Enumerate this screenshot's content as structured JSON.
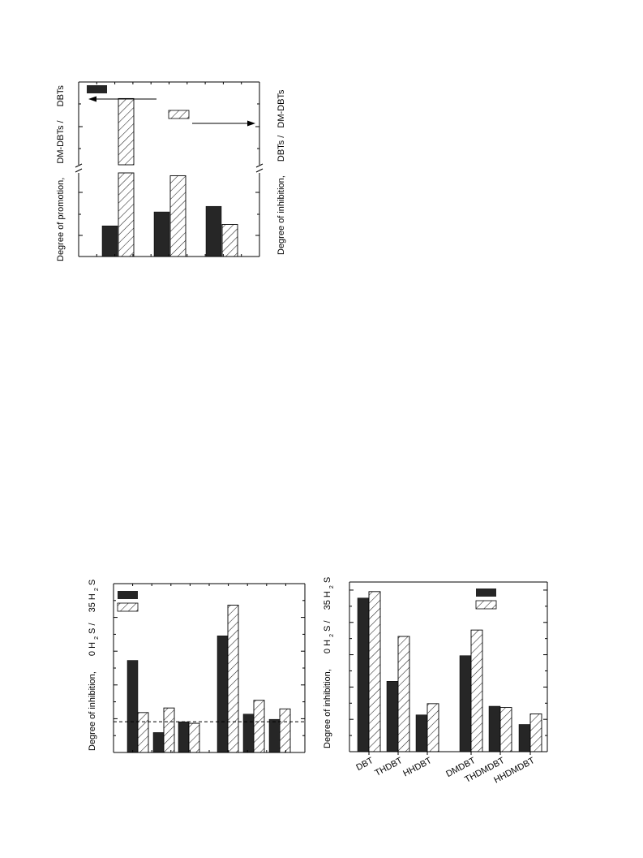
{
  "colors": {
    "solid": "#262626",
    "hatch_stroke": "#222222",
    "hatch_fill": "#ffffff",
    "axis": "#000000"
  },
  "chart_data": [
    {
      "type": "bar",
      "panel": "top",
      "ylabel_left": [
        "Degree of promotion,",
        "DM-DBTs /",
        "DBTs"
      ],
      "ylabel_right": [
        "Degree of inhibition,",
        "DBTs /",
        "DM-DBTs"
      ],
      "categories": [
        "",
        "",
        ""
      ],
      "series": [
        {
          "values": [
            1.1,
            1.6,
            1.8
          ],
          "style": "solid",
          "axis": "left"
        },
        {
          "values": [
            7.0,
            2.9,
            1.15
          ],
          "style": "hatched",
          "axis": "right"
        }
      ],
      "ylim": [
        0,
        8
      ],
      "axis_break": true,
      "legend_placement": "top-left"
    },
    {
      "type": "bar",
      "panel": "bottom-left",
      "ylabel": [
        "Degree of inhibition,",
        "0 H",
        "2",
        "S /",
        "35 H",
        "2",
        "S"
      ],
      "categories": [
        "",
        "",
        "",
        "",
        "",
        ""
      ],
      "series": [
        {
          "values": [
            3.0,
            0.65,
            1.0,
            3.8,
            1.25,
            1.08
          ],
          "style": "solid"
        },
        {
          "values": [
            1.3,
            1.45,
            0.95,
            4.8,
            1.7,
            1.42
          ],
          "style": "hatched"
        }
      ],
      "ylim": [
        0,
        5.5
      ],
      "reference_line": 1.0,
      "legend_placement": "top-left"
    },
    {
      "type": "bar",
      "panel": "bottom-right",
      "ylabel": [
        "Degree of inhibition,",
        "0 H",
        "2",
        "S /",
        "35 H",
        "2",
        "S"
      ],
      "categories": [
        "DBT",
        "THDBT",
        "HHDBT",
        "DMDBT",
        "THDMDBT",
        "HHDMDBT"
      ],
      "series": [
        {
          "values": [
            4.8,
            2.2,
            1.15,
            3.0,
            1.42,
            0.85
          ],
          "style": "solid"
        },
        {
          "values": [
            5.0,
            3.6,
            1.5,
            3.8,
            1.38,
            1.18
          ],
          "style": "hatched"
        }
      ],
      "ylim": [
        0,
        5.3
      ],
      "legend_placement": "top-right"
    }
  ]
}
